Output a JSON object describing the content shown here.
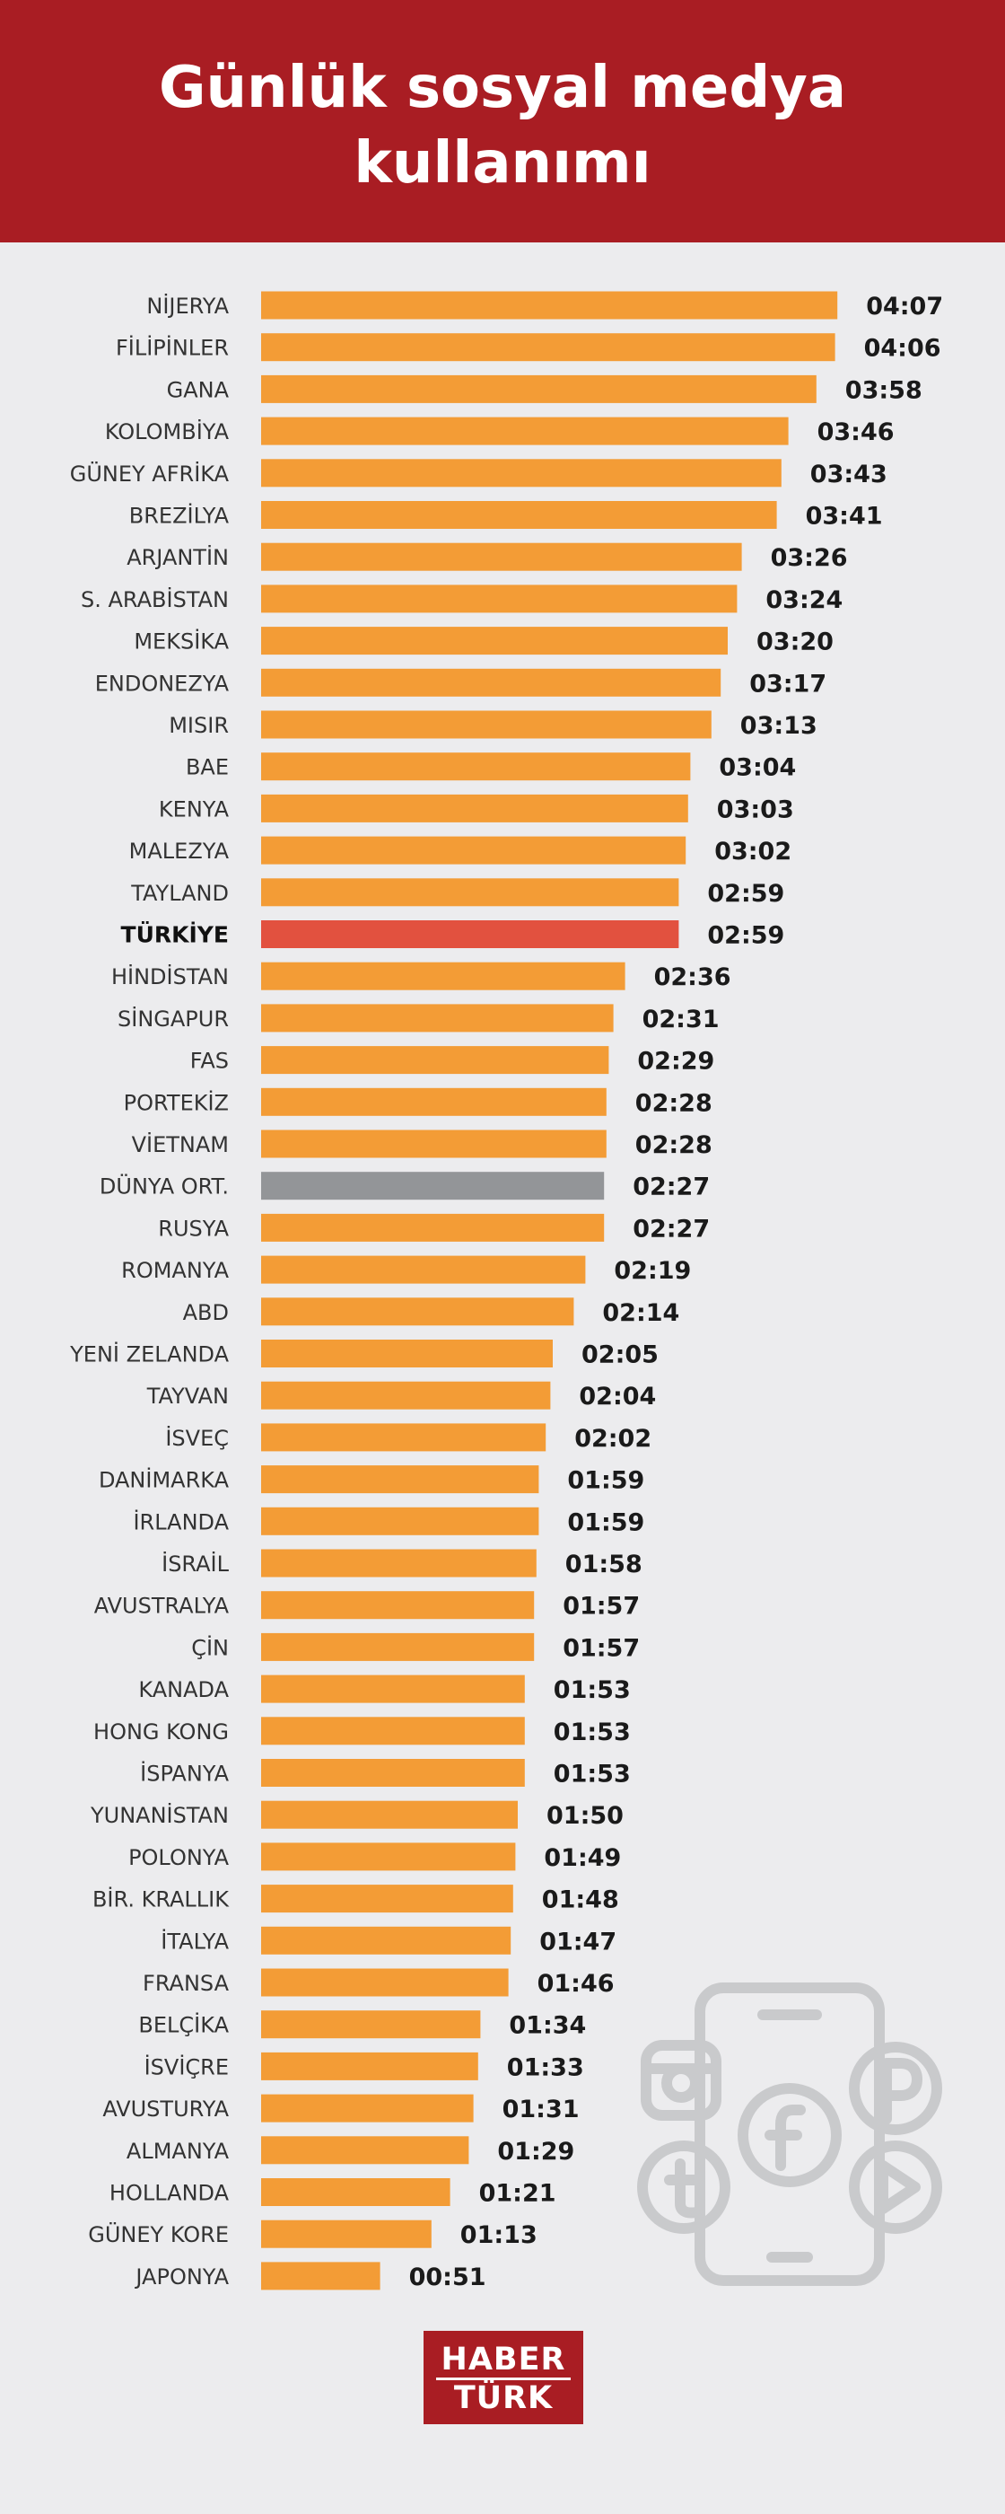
{
  "header": {
    "title_line1": "Günlük sosyal medya",
    "title_line2": "kullanımı"
  },
  "logo": {
    "line1": "HABER",
    "line2": "TÜRK"
  },
  "icons": [
    "phone-icon",
    "instagram-icon",
    "facebook-icon",
    "pinterest-icon",
    "tumblr-icon",
    "play-icon"
  ],
  "colors": {
    "header_bg": "#a91d23",
    "background": "#ececee",
    "bar_default": "#f39c36",
    "bar_turkiye": "#e2513f",
    "bar_world_avg": "#939598",
    "icon_stroke": "#c9cacc"
  },
  "chart_data": {
    "type": "bar",
    "orientation": "horizontal",
    "title": "Günlük sosyal medya kullanımı",
    "unit": "hh:mm",
    "xlim_minutes": [
      0,
      250
    ],
    "grid": false,
    "highlight": [
      "TÜRKİYE",
      "DÜNYA ORT."
    ],
    "categories": [
      "NİJERYA",
      "FİLİPİNLER",
      "GANA",
      "KOLOMBİYA",
      "GÜNEY AFRİKA",
      "BREZİLYA",
      "ARJANTİN",
      "S. ARABİSTAN",
      "MEKSİKA",
      "ENDONEZYA",
      "MISIR",
      "BAE",
      "KENYA",
      "MALEZYA",
      "TAYLAND",
      "TÜRKİYE",
      "HİNDİSTAN",
      "SİNGAPUR",
      "FAS",
      "PORTEKİZ",
      "VİETNAM",
      "DÜNYA ORT.",
      "RUSYA",
      "ROMANYA",
      "ABD",
      "YENİ ZELANDA",
      "TAYVAN",
      "İSVEÇ",
      "DANİMARKA",
      "İRLANDA",
      "İSRAİL",
      "AVUSTRALYA",
      "ÇİN",
      "KANADA",
      "HONG KONG",
      "İSPANYA",
      "YUNANİSTAN",
      "POLONYA",
      "BİR. KRALLIK",
      "İTALYA",
      "FRANSA",
      "BELÇİKA",
      "İSVİÇRE",
      "AVUSTURYA",
      "ALMANYA",
      "HOLLANDA",
      "GÜNEY KORE",
      "JAPONYA"
    ],
    "labels": [
      "04:07",
      "04:06",
      "03:58",
      "03:46",
      "03:43",
      "03:41",
      "03:26",
      "03:24",
      "03:20",
      "03:17",
      "03:13",
      "03:04",
      "03:03",
      "03:02",
      "02:59",
      "02:59",
      "02:36",
      "02:31",
      "02:29",
      "02:28",
      "02:28",
      "02:27",
      "02:27",
      "02:19",
      "02:14",
      "02:05",
      "02:04",
      "02:02",
      "01:59",
      "01:59",
      "01:58",
      "01:57",
      "01:57",
      "01:53",
      "01:53",
      "01:53",
      "01:50",
      "01:49",
      "01:48",
      "01:47",
      "01:46",
      "01:34",
      "01:33",
      "01:31",
      "01:29",
      "01:21",
      "01:13",
      "00:51"
    ],
    "values_minutes": [
      247,
      246,
      238,
      226,
      223,
      221,
      206,
      204,
      200,
      197,
      193,
      184,
      183,
      182,
      179,
      179,
      156,
      151,
      149,
      148,
      148,
      147,
      147,
      139,
      134,
      125,
      124,
      122,
      119,
      119,
      118,
      117,
      117,
      113,
      113,
      113,
      110,
      109,
      108,
      107,
      106,
      94,
      93,
      91,
      89,
      81,
      73,
      51
    ]
  }
}
